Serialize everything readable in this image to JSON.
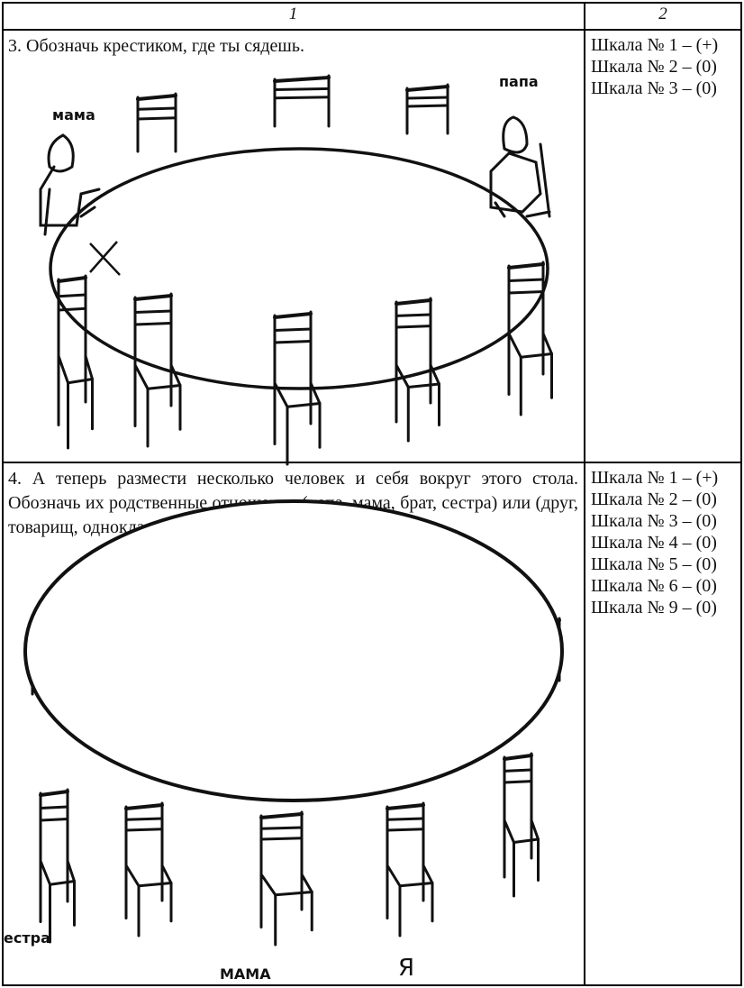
{
  "header": {
    "col1": "1",
    "col2": "2"
  },
  "rows": [
    {
      "task": "3. Обозначь крестиком, где ты сядешь.",
      "drawing_labels": [
        "мама",
        "папа"
      ],
      "scales": [
        "Шкала № 1 – (+)",
        "Шкала № 2 – (0)",
        "Шкала № 3 – (0)"
      ]
    },
    {
      "task": "4. А теперь размести несколько человек и себя вокруг этого стола. Обозначь их родственные отношения (папа, мама, брат, сестра) или (друг, товарищ, одноклассник).",
      "drawing_labels": [
        "естра",
        "МАМА",
        "Я"
      ],
      "scales": [
        "Шкала № 1 – (+)",
        "Шкала № 2 – (0)",
        "Шкала № 3 – (0)",
        "Шкала № 4 – (0)",
        "Шкала № 5 – (0)",
        "Шкала № 6 – (0)",
        "Шкала № 9 – (0)"
      ]
    }
  ]
}
